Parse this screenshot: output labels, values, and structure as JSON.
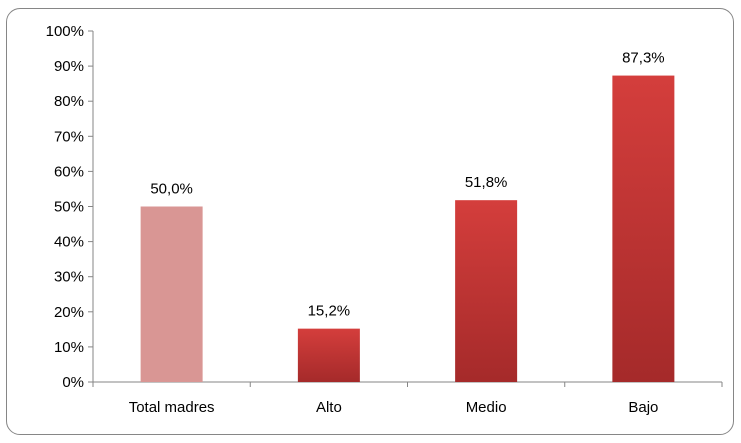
{
  "chart_data": {
    "type": "bar",
    "categories": [
      "Total madres",
      "Alto",
      "Medio",
      "Bajo"
    ],
    "values": [
      50.0,
      15.2,
      51.8,
      87.3
    ],
    "data_labels": [
      "50,0%",
      "15,2%",
      "51,8%",
      "87,3%"
    ],
    "ylim": [
      0,
      100
    ],
    "yticks": [
      0,
      10,
      20,
      30,
      40,
      50,
      60,
      70,
      80,
      90,
      100
    ],
    "ytick_labels": [
      "0%",
      "10%",
      "20%",
      "30%",
      "40%",
      "50%",
      "60%",
      "70%",
      "80%",
      "90%",
      "100%"
    ],
    "title": "",
    "xlabel": "",
    "ylabel": "",
    "grid": false,
    "legend": "none",
    "colors": {
      "highlight_bar": "#d99694",
      "bar_top": "#d43e3c",
      "bar_bottom": "#a52a2a",
      "axis": "#868686"
    }
  }
}
